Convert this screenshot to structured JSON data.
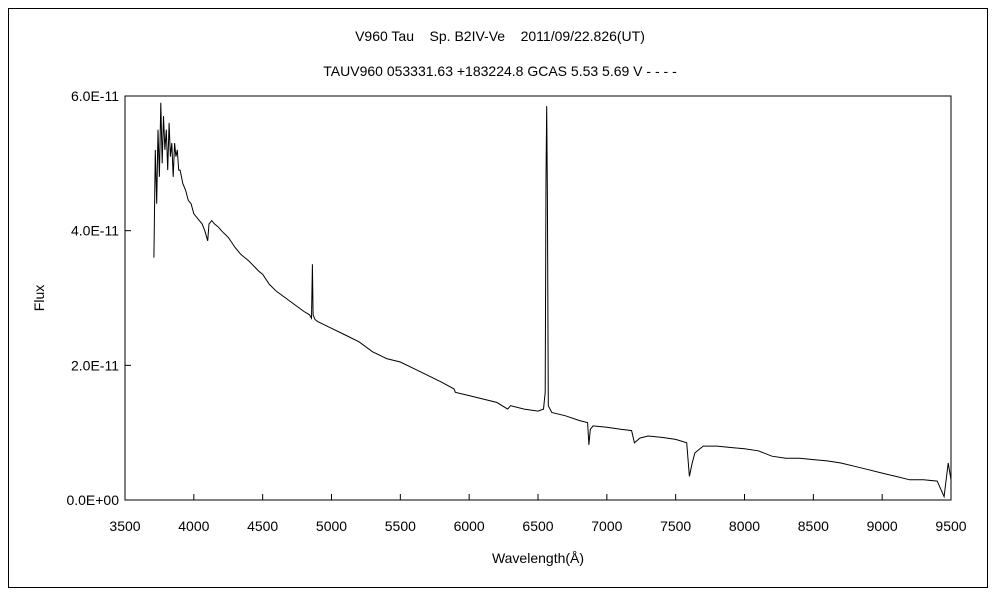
{
  "chart_data": {
    "type": "line",
    "title": "V960 Tau    Sp. B2IV-Ve    2011/09/22.826(UT)",
    "subtitle": "TAUV960 053331.63 +183224.8 GCAS 5.53 5.69 V - - - -",
    "xlabel": "Wavelength(Å)",
    "ylabel": "Flux",
    "xlim": [
      3500,
      9500
    ],
    "ylim": [
      0,
      6e-11
    ],
    "xticks": [
      "3500",
      "4000",
      "4500",
      "5000",
      "5500",
      "6000",
      "6500",
      "7000",
      "7500",
      "8000",
      "8500",
      "9000",
      "9500"
    ],
    "yticks": [
      "0.0E+00",
      "2.0E-11",
      "4.0E-11",
      "6.0E-11"
    ],
    "grid": false,
    "legend": "none",
    "line_color": "#000000",
    "series": [
      {
        "x": [
          3710,
          3720,
          3730,
          3740,
          3750,
          3760,
          3770,
          3780,
          3790,
          3800,
          3810,
          3820,
          3830,
          3840,
          3850,
          3860,
          3870,
          3880,
          3890,
          3900,
          3920,
          3940,
          3960,
          3980,
          4000,
          4020,
          4040,
          4060,
          4080,
          4101,
          4110,
          4130,
          4150,
          4180,
          4200,
          4250,
          4300,
          4340,
          4370,
          4400,
          4471,
          4500,
          4550,
          4600,
          4700,
          4800,
          4840,
          4855,
          4861,
          4866,
          4880,
          4900,
          4950,
          5000,
          5100,
          5200,
          5300,
          5400,
          5500,
          5600,
          5700,
          5800,
          5890,
          5900,
          6000,
          6100,
          6200,
          6280,
          6300,
          6400,
          6500,
          6540,
          6552,
          6558,
          6563,
          6568,
          6575,
          6600,
          6700,
          6800,
          6860,
          6870,
          6880,
          6900,
          7000,
          7100,
          7180,
          7200,
          7240,
          7300,
          7400,
          7500,
          7580,
          7600,
          7620,
          7640,
          7700,
          7800,
          7900,
          8000,
          8100,
          8200,
          8300,
          8400,
          8500,
          8600,
          8700,
          8800,
          8900,
          9000,
          9100,
          9200,
          9300,
          9400,
          9450,
          9480,
          9500
        ],
        "y": [
          3.6e-11,
          5.2e-11,
          4.4e-11,
          5.5e-11,
          4.8e-11,
          5.9e-11,
          5e-11,
          5.7e-11,
          5.2e-11,
          5.5e-11,
          4.9e-11,
          5.6e-11,
          5.1e-11,
          5.3e-11,
          4.8e-11,
          5.3e-11,
          5.1e-11,
          5.2e-11,
          4.9e-11,
          4.9e-11,
          4.7e-11,
          4.6e-11,
          4.45e-11,
          4.4e-11,
          4.25e-11,
          4.2e-11,
          4.15e-11,
          4.1e-11,
          4e-11,
          3.85e-11,
          4.1e-11,
          4.15e-11,
          4.1e-11,
          4.05e-11,
          4e-11,
          3.9e-11,
          3.75e-11,
          3.65e-11,
          3.6e-11,
          3.55e-11,
          3.4e-11,
          3.35e-11,
          3.2e-11,
          3.1e-11,
          2.95e-11,
          2.8e-11,
          2.75e-11,
          2.7e-11,
          3.5e-11,
          2.75e-11,
          2.68e-11,
          2.65e-11,
          2.6e-11,
          2.55e-11,
          2.45e-11,
          2.35e-11,
          2.2e-11,
          2.1e-11,
          2.05e-11,
          1.95e-11,
          1.85e-11,
          1.75e-11,
          1.65e-11,
          1.6e-11,
          1.55e-11,
          1.5e-11,
          1.45e-11,
          1.35e-11,
          1.4e-11,
          1.35e-11,
          1.32e-11,
          1.35e-11,
          1.6e-11,
          4.8e-11,
          5.85e-11,
          4.5e-11,
          1.4e-11,
          1.3e-11,
          1.25e-11,
          1.18e-11,
          1.15e-11,
          8.2e-12,
          1.05e-11,
          1.1e-11,
          1.08e-11,
          1.05e-11,
          1.03e-11,
          8.5e-12,
          9.2e-12,
          9.5e-12,
          9.3e-12,
          9e-12,
          8.5e-12,
          3.5e-12,
          5.5e-12,
          7e-12,
          8e-12,
          8e-12,
          7.8e-12,
          7.6e-12,
          7.3e-12,
          6.5e-12,
          6.2e-12,
          6.2e-12,
          6e-12,
          5.8e-12,
          5.5e-12,
          5e-12,
          4.5e-12,
          4e-12,
          3.5e-12,
          3e-12,
          3e-12,
          2.8e-12,
          5e-13,
          5.5e-12,
          3e-12
        ]
      }
    ]
  }
}
